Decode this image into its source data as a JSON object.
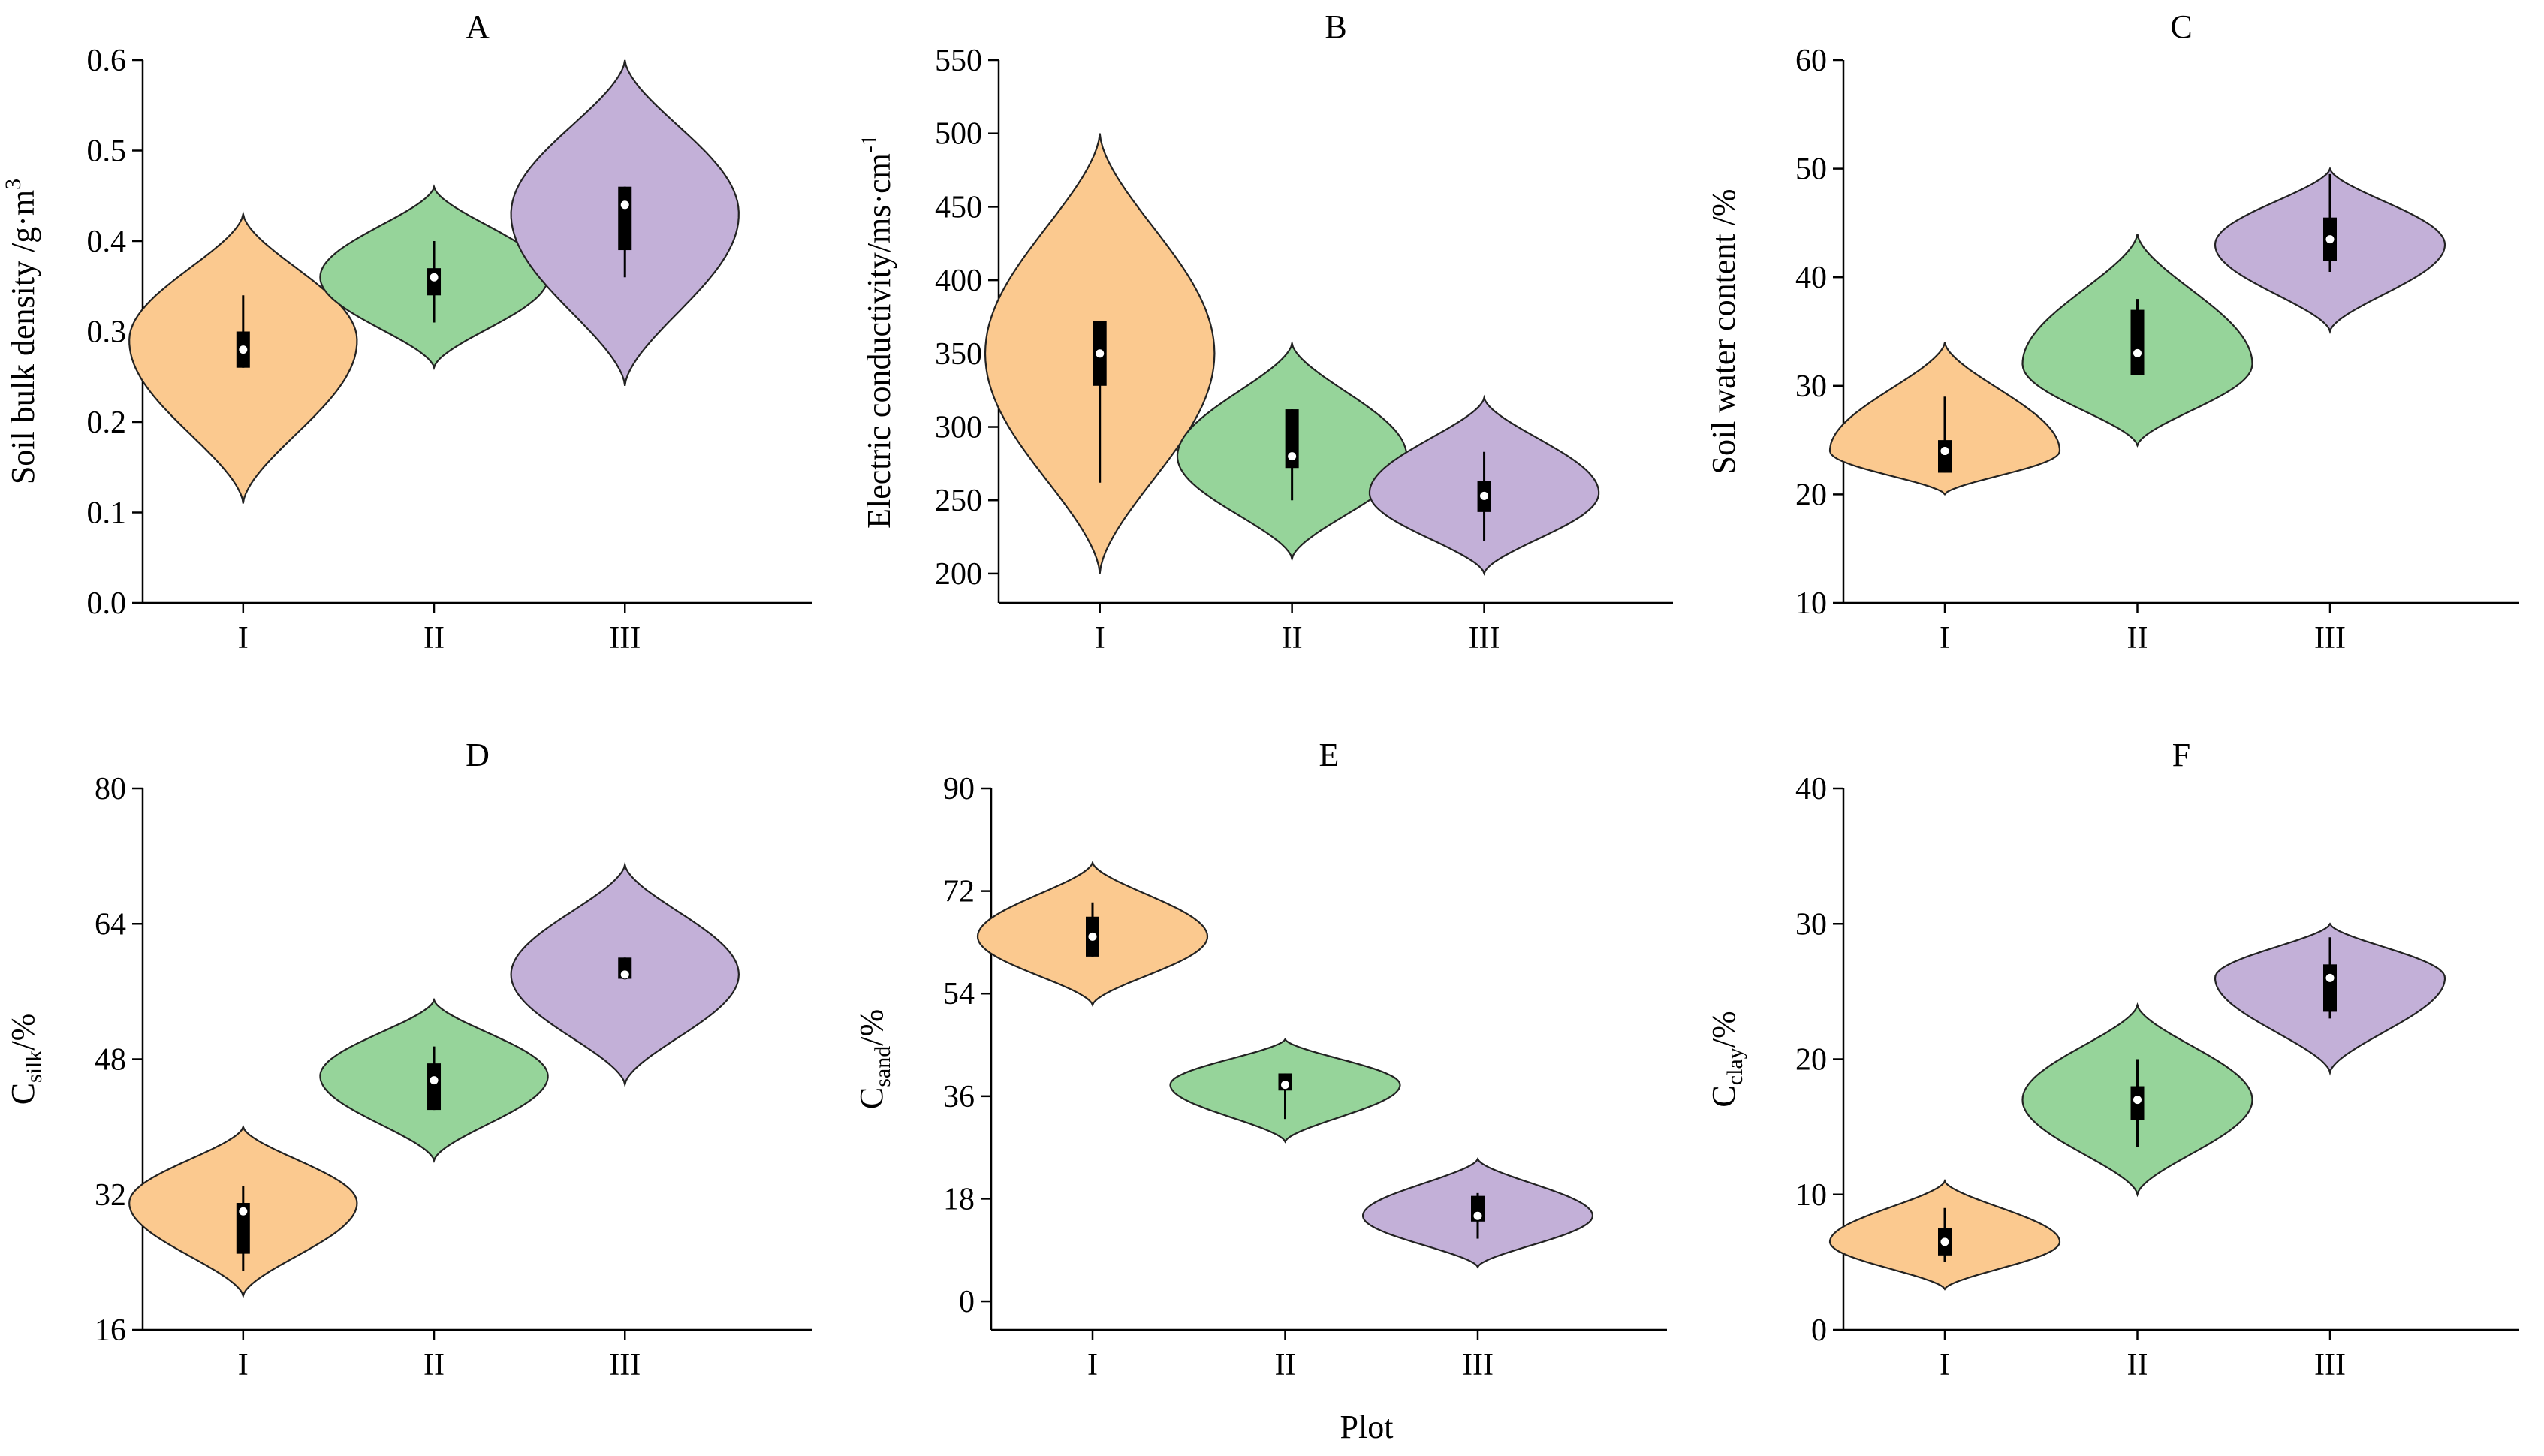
{
  "figure": {
    "x_label": "Plot",
    "colors": {
      "I": "#fbc98f",
      "II": "#96d49a",
      "III": "#c3b0d8"
    }
  },
  "chart_data": [
    {
      "type": "violin",
      "panel": "A",
      "title": "A",
      "ylabel_main": "Soil bulk density /g·m",
      "ylabel_sup": "3",
      "ylabel_sub": "",
      "ylim": [
        0,
        0.6
      ],
      "yticks": [
        "0.0",
        "0.1",
        "0.2",
        "0.3",
        "0.4",
        "0.5",
        "0.6"
      ],
      "categories": [
        "I",
        "II",
        "III"
      ],
      "series": [
        {
          "name": "I",
          "color": "#fbc98f",
          "min": 0.11,
          "max": 0.43,
          "peak": 0.29,
          "half_width": 0.17,
          "q1": 0.26,
          "q3": 0.3,
          "median": 0.28,
          "whisker_low": 0.26,
          "whisker_high": 0.34
        },
        {
          "name": "II",
          "color": "#96d49a",
          "min": 0.26,
          "max": 0.46,
          "peak": 0.36,
          "half_width": 0.17,
          "q1": 0.34,
          "q3": 0.37,
          "median": 0.36,
          "whisker_low": 0.31,
          "whisker_high": 0.4
        },
        {
          "name": "III",
          "color": "#c3b0d8",
          "min": 0.24,
          "max": 0.6,
          "peak": 0.43,
          "half_width": 0.17,
          "q1": 0.39,
          "q3": 0.46,
          "median": 0.44,
          "whisker_low": 0.36,
          "whisker_high": 0.46
        }
      ]
    },
    {
      "type": "violin",
      "panel": "B",
      "title": "B",
      "ylabel_main": "Electric conductivity/ms·cm",
      "ylabel_sup": "-1",
      "ylabel_sub": "",
      "ylim": [
        180,
        550
      ],
      "yticks": [
        "200",
        "250",
        "300",
        "350",
        "400",
        "450",
        "500",
        "550"
      ],
      "categories": [
        "I",
        "II",
        "III"
      ],
      "series": [
        {
          "name": "I",
          "color": "#fbc98f",
          "min": 200,
          "max": 500,
          "peak": 350,
          "half_width": 0.17,
          "q1": 328,
          "q3": 372,
          "median": 350,
          "whisker_low": 262,
          "whisker_high": 372
        },
        {
          "name": "II",
          "color": "#96d49a",
          "min": 210,
          "max": 357,
          "peak": 280,
          "half_width": 0.17,
          "q1": 272,
          "q3": 312,
          "median": 280,
          "whisker_low": 250,
          "whisker_high": 312
        },
        {
          "name": "III",
          "color": "#c3b0d8",
          "min": 200,
          "max": 320,
          "peak": 255,
          "half_width": 0.17,
          "q1": 242,
          "q3": 263,
          "median": 253,
          "whisker_low": 222,
          "whisker_high": 283
        }
      ]
    },
    {
      "type": "violin",
      "panel": "C",
      "title": "C",
      "ylabel_main": "Soil  water content /%",
      "ylabel_sup": "",
      "ylabel_sub": "",
      "ylim": [
        10,
        60
      ],
      "yticks": [
        "10",
        "20",
        "30",
        "40",
        "50",
        "60"
      ],
      "categories": [
        "I",
        "II",
        "III"
      ],
      "series": [
        {
          "name": "I",
          "color": "#fbc98f",
          "min": 20,
          "max": 34,
          "peak": 24,
          "half_width": 0.17,
          "q1": 22,
          "q3": 25,
          "median": 24,
          "whisker_low": 22,
          "whisker_high": 29
        },
        {
          "name": "II",
          "color": "#96d49a",
          "min": 24.5,
          "max": 44,
          "peak": 32,
          "half_width": 0.17,
          "q1": 31,
          "q3": 37,
          "median": 33,
          "whisker_low": 31,
          "whisker_high": 38
        },
        {
          "name": "III",
          "color": "#c3b0d8",
          "min": 35,
          "max": 50,
          "peak": 43,
          "half_width": 0.17,
          "q1": 41.5,
          "q3": 45.5,
          "median": 43.5,
          "whisker_low": 40.5,
          "whisker_high": 49.5
        }
      ]
    },
    {
      "type": "violin",
      "panel": "D",
      "title": "D",
      "ylabel_main": "C",
      "ylabel_sup": "",
      "ylabel_sub": "silk",
      "ylabel_tail": "/%",
      "ylim": [
        16,
        80
      ],
      "yticks": [
        "16",
        "32",
        "48",
        "64",
        "80"
      ],
      "categories": [
        "I",
        "II",
        "III"
      ],
      "series": [
        {
          "name": "I",
          "color": "#fbc98f",
          "min": 20,
          "max": 40,
          "peak": 31,
          "half_width": 0.17,
          "q1": 25,
          "q3": 31,
          "median": 30,
          "whisker_low": 23,
          "whisker_high": 33
        },
        {
          "name": "II",
          "color": "#96d49a",
          "min": 36,
          "max": 55,
          "peak": 46,
          "half_width": 0.17,
          "q1": 42,
          "q3": 47.5,
          "median": 45.5,
          "whisker_low": 42,
          "whisker_high": 49.5
        },
        {
          "name": "III",
          "color": "#c3b0d8",
          "min": 45,
          "max": 71,
          "peak": 58,
          "half_width": 0.17,
          "q1": 57.5,
          "q3": 60,
          "median": 58,
          "whisker_low": 57.5,
          "whisker_high": 60
        }
      ]
    },
    {
      "type": "violin",
      "panel": "E",
      "title": "E",
      "ylabel_main": "C",
      "ylabel_sup": "",
      "ylabel_sub": "sand",
      "ylabel_tail": "/%",
      "ylim": [
        -5,
        90
      ],
      "yticks": [
        "0",
        "18",
        "36",
        "54",
        "72",
        "90"
      ],
      "categories": [
        "I",
        "II",
        "III"
      ],
      "series": [
        {
          "name": "I",
          "color": "#fbc98f",
          "min": 52,
          "max": 77,
          "peak": 64,
          "half_width": 0.17,
          "q1": 60.5,
          "q3": 67.5,
          "median": 64,
          "whisker_low": 60.5,
          "whisker_high": 70
        },
        {
          "name": "II",
          "color": "#96d49a",
          "min": 28,
          "max": 46,
          "peak": 38,
          "half_width": 0.17,
          "q1": 37,
          "q3": 40,
          "median": 38,
          "whisker_low": 32,
          "whisker_high": 40
        },
        {
          "name": "III",
          "color": "#c3b0d8",
          "min": 6,
          "max": 25,
          "peak": 15,
          "half_width": 0.17,
          "q1": 14,
          "q3": 18.5,
          "median": 15,
          "whisker_low": 11,
          "whisker_high": 19
        }
      ]
    },
    {
      "type": "violin",
      "panel": "F",
      "title": "F",
      "ylabel_main": "C",
      "ylabel_sup": "",
      "ylabel_sub": "clay",
      "ylabel_tail": "/%",
      "ylim": [
        0,
        40
      ],
      "yticks": [
        "0",
        "10",
        "20",
        "30",
        "40"
      ],
      "categories": [
        "I",
        "II",
        "III"
      ],
      "series": [
        {
          "name": "I",
          "color": "#fbc98f",
          "min": 3,
          "max": 11,
          "peak": 6.5,
          "half_width": 0.17,
          "q1": 5.5,
          "q3": 7.5,
          "median": 6.5,
          "whisker_low": 5,
          "whisker_high": 9
        },
        {
          "name": "II",
          "color": "#96d49a",
          "min": 10,
          "max": 24,
          "peak": 17,
          "half_width": 0.17,
          "q1": 15.5,
          "q3": 18,
          "median": 17,
          "whisker_low": 13.5,
          "whisker_high": 20
        },
        {
          "name": "III",
          "color": "#c3b0d8",
          "min": 19,
          "max": 30,
          "peak": 26,
          "half_width": 0.17,
          "q1": 23.5,
          "q3": 27,
          "median": 26,
          "whisker_low": 23,
          "whisker_high": 29
        }
      ]
    }
  ]
}
